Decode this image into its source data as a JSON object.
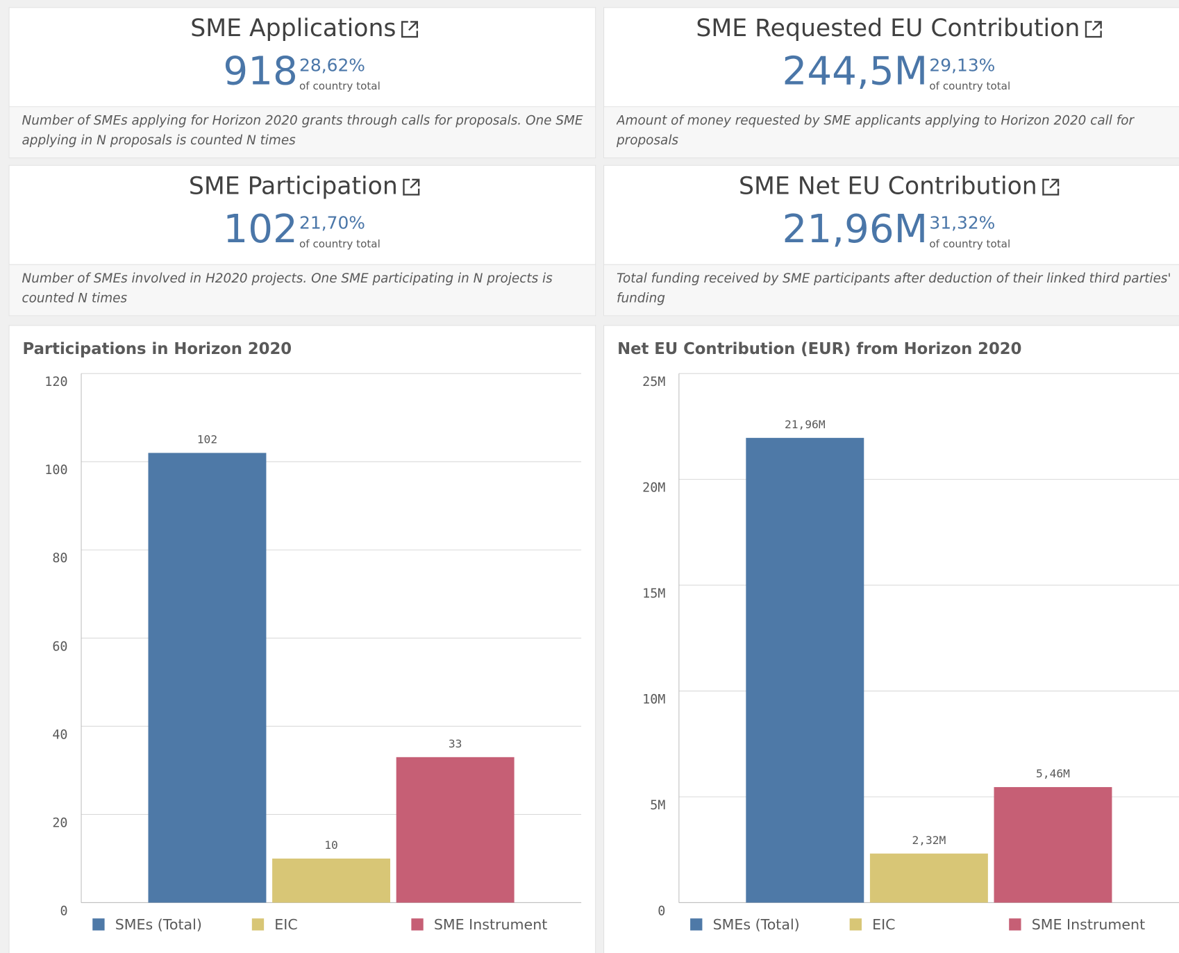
{
  "kpis": [
    {
      "title": "SME Applications",
      "value": "918",
      "percent": "28,62%",
      "percent_note": "of country total",
      "description": "Number of SMEs applying for Horizon 2020 grants through calls for proposals. One SME applying in N proposals is counted N times"
    },
    {
      "title": "SME Requested EU Contribution",
      "value": "244,5M",
      "percent": "29,13%",
      "percent_note": "of country total",
      "description": "Amount of money requested by SME applicants applying to Horizon 2020 call for proposals"
    },
    {
      "title": "SME Participation",
      "value": "102",
      "percent": "21,70%",
      "percent_note": "of country total",
      "description": "Number of SMEs involved in H2020 projects. One SME participating in N projects is counted N times"
    },
    {
      "title": "SME Net EU Contribution",
      "value": "21,96M",
      "percent": "31,32%",
      "percent_note": "of country total",
      "description": "Total funding received by SME participants after deduction of their linked third parties' funding"
    }
  ],
  "chart_data": [
    {
      "type": "bar",
      "title": "Participations in Horizon 2020",
      "ylim": [
        0,
        120
      ],
      "yticks": [
        0,
        20,
        40,
        60,
        80,
        100,
        120
      ],
      "grid": true,
      "series": [
        {
          "name": "SMEs (Total)",
          "color": "#4e79a7",
          "values": [
            102
          ]
        },
        {
          "name": "EIC",
          "color": "#d8c676",
          "values": [
            10
          ]
        },
        {
          "name": "SME Instrument",
          "color": "#c65f75",
          "values": [
            33
          ]
        }
      ]
    },
    {
      "type": "bar",
      "title": "Net EU Contribution (EUR) from Horizon 2020",
      "ylim": [
        0,
        25000000
      ],
      "yticks": [
        0,
        {
          "value": 5000000,
          "label": "5M"
        },
        {
          "value": 10000000,
          "label": "10M"
        },
        {
          "value": 15000000,
          "label": "15M"
        },
        {
          "value": 20000000,
          "label": "20M"
        },
        {
          "value": 25000000,
          "label": "25M"
        }
      ],
      "grid": true,
      "series": [
        {
          "name": "SMEs (Total)",
          "color": "#4e79a7",
          "values": [
            21960000
          ],
          "value_labels": [
            "21,96M"
          ]
        },
        {
          "name": "EIC",
          "color": "#d8c676",
          "values": [
            2320000
          ],
          "value_labels": [
            "2,32M"
          ]
        },
        {
          "name": "SME Instrument",
          "color": "#c65f75",
          "values": [
            5460000
          ],
          "value_labels": [
            "5,46M"
          ]
        }
      ]
    }
  ]
}
